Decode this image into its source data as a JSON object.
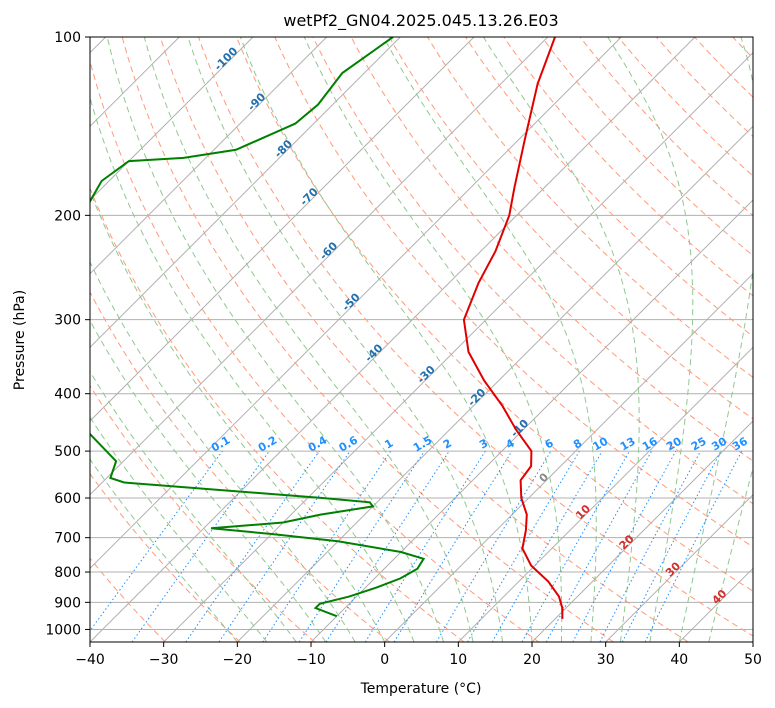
{
  "chart_data": {
    "type": "line",
    "title": "wetPf2_GN04.2025.045.13.26.E03",
    "xlabel": "Temperature (°C)",
    "ylabel": "Pressure (hPa)",
    "xlim": [
      -40,
      50
    ],
    "ylim": [
      1050,
      100
    ],
    "y_scale": "log",
    "grid": true,
    "x_ticks": [
      -40,
      -30,
      -20,
      -10,
      0,
      10,
      20,
      30,
      40,
      50
    ],
    "y_ticks": [
      100,
      200,
      300,
      400,
      500,
      600,
      700,
      800,
      900,
      1000
    ],
    "series": [
      {
        "role": "temperature",
        "color": "#e00000",
        "points": [
          {
            "p": 100,
            "t": -59
          },
          {
            "p": 120,
            "t": -55
          },
          {
            "p": 150,
            "t": -49
          },
          {
            "p": 180,
            "t": -44
          },
          {
            "p": 200,
            "t": -41
          },
          {
            "p": 230,
            "t": -38
          },
          {
            "p": 260,
            "t": -36
          },
          {
            "p": 300,
            "t": -33
          },
          {
            "p": 340,
            "t": -28
          },
          {
            "p": 380,
            "t": -22
          },
          {
            "p": 420,
            "t": -16
          },
          {
            "p": 460,
            "t": -11
          },
          {
            "p": 500,
            "t": -6
          },
          {
            "p": 530,
            "t": -4
          },
          {
            "p": 560,
            "t": -3.5
          },
          {
            "p": 600,
            "t": -1
          },
          {
            "p": 640,
            "t": 2
          },
          {
            "p": 680,
            "t": 4
          },
          {
            "p": 730,
            "t": 6
          },
          {
            "p": 780,
            "t": 9.5
          },
          {
            "p": 830,
            "t": 14
          },
          {
            "p": 880,
            "t": 17.5
          },
          {
            "p": 920,
            "t": 19.5
          },
          {
            "p": 960,
            "t": 21
          }
        ]
      },
      {
        "role": "dewpoint",
        "color": "#008000",
        "points": [
          {
            "p": 100,
            "t": -81
          },
          {
            "p": 115,
            "t": -83
          },
          {
            "p": 130,
            "t": -82
          },
          {
            "p": 140,
            "t": -82.5
          },
          {
            "p": 155,
            "t": -87
          },
          {
            "p": 160,
            "t": -93
          },
          {
            "p": 162,
            "t": -100
          },
          {
            "p": 175,
            "t": -101
          },
          {
            "p": 200,
            "t": -99
          },
          {
            "p": 230,
            "t": -98
          },
          {
            "p": 255,
            "t": -96
          },
          {
            "p": 285,
            "t": -95
          },
          {
            "p": 310,
            "t": -88
          },
          {
            "p": 335,
            "t": -83
          },
          {
            "p": 360,
            "t": -82
          },
          {
            "p": 380,
            "t": -82.5
          },
          {
            "p": 520,
            "t": -61
          },
          {
            "p": 555,
            "t": -59.5
          },
          {
            "p": 565,
            "t": -57
          },
          {
            "p": 600,
            "t": -28
          },
          {
            "p": 610,
            "t": -21
          },
          {
            "p": 620,
            "t": -20
          },
          {
            "p": 640,
            "t": -26
          },
          {
            "p": 660,
            "t": -30
          },
          {
            "p": 675,
            "t": -39
          },
          {
            "p": 690,
            "t": -30
          },
          {
            "p": 710,
            "t": -20
          },
          {
            "p": 740,
            "t": -10
          },
          {
            "p": 760,
            "t": -6
          },
          {
            "p": 790,
            "t": -5.5
          },
          {
            "p": 820,
            "t": -6.5
          },
          {
            "p": 850,
            "t": -8.5
          },
          {
            "p": 880,
            "t": -11
          },
          {
            "p": 905,
            "t": -14
          },
          {
            "p": 920,
            "t": -14
          },
          {
            "p": 950,
            "t": -10
          }
        ]
      }
    ],
    "isotherm_labels": [
      "-100",
      "-90",
      "-80",
      "-70",
      "-60",
      "-50",
      "-40",
      "-30",
      "-20",
      "-10",
      "0",
      "10",
      "20",
      "30",
      "40"
    ],
    "mixing_ratio_labels": [
      "0.1",
      "0.2",
      "0.4",
      "0.6",
      "1",
      "1.5",
      "2",
      "3",
      "4",
      "6",
      "8",
      "10",
      "13",
      "16",
      "20",
      "25",
      "30",
      "36"
    ]
  },
  "colors": {
    "temperature": "#e00000",
    "dewpoint": "#008000",
    "isotherm_cold": "#2070b0",
    "isotherm_warm": "#d03030",
    "dry_adiabat": "#ff9a7a",
    "moist_adiabat": "#90c890",
    "mixing_ratio": "#1e90ff",
    "grid": "#b0b0b0"
  }
}
